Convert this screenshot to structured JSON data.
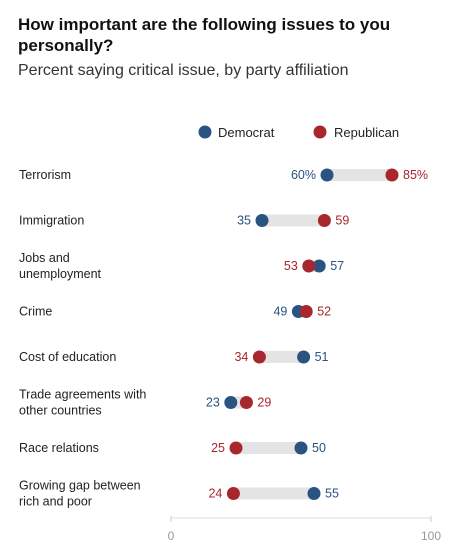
{
  "chart_data": {
    "type": "dot-plot",
    "title": "How important are the following issues to you personally?",
    "subtitle": "Percent saying critical issue, by party affiliation",
    "xlim": [
      0,
      100
    ],
    "x_ticks": [
      "0",
      "100"
    ],
    "legend_position": "top",
    "colors": {
      "Democrat": "#2a5382",
      "Republican": "#a8262d",
      "gap_bar": "#e4e4e4"
    },
    "series": [
      {
        "name": "Democrat"
      },
      {
        "name": "Republican"
      }
    ],
    "categories": [
      {
        "label": [
          "Terrorism"
        ],
        "dem": 60,
        "rep": 85,
        "dem_text": "60%",
        "rep_text": "85%"
      },
      {
        "label": [
          "Immigration"
        ],
        "dem": 35,
        "rep": 59,
        "dem_text": "35",
        "rep_text": "59"
      },
      {
        "label": [
          "Jobs and",
          "unemployment"
        ],
        "dem": 57,
        "rep": 53,
        "dem_text": "57",
        "rep_text": "53"
      },
      {
        "label": [
          "Crime"
        ],
        "dem": 49,
        "rep": 52,
        "dem_text": "49",
        "rep_text": "52"
      },
      {
        "label": [
          "Cost of education"
        ],
        "dem": 51,
        "rep": 34,
        "dem_text": "51",
        "rep_text": "34"
      },
      {
        "label": [
          "Trade agreements with",
          "other countries"
        ],
        "dem": 23,
        "rep": 29,
        "dem_text": "23",
        "rep_text": "29"
      },
      {
        "label": [
          "Race relations"
        ],
        "dem": 50,
        "rep": 25,
        "dem_text": "50",
        "rep_text": "25"
      },
      {
        "label": [
          "Growing gap between",
          "rich and poor"
        ],
        "dem": 55,
        "rep": 24,
        "dem_text": "55",
        "rep_text": "24"
      }
    ]
  }
}
